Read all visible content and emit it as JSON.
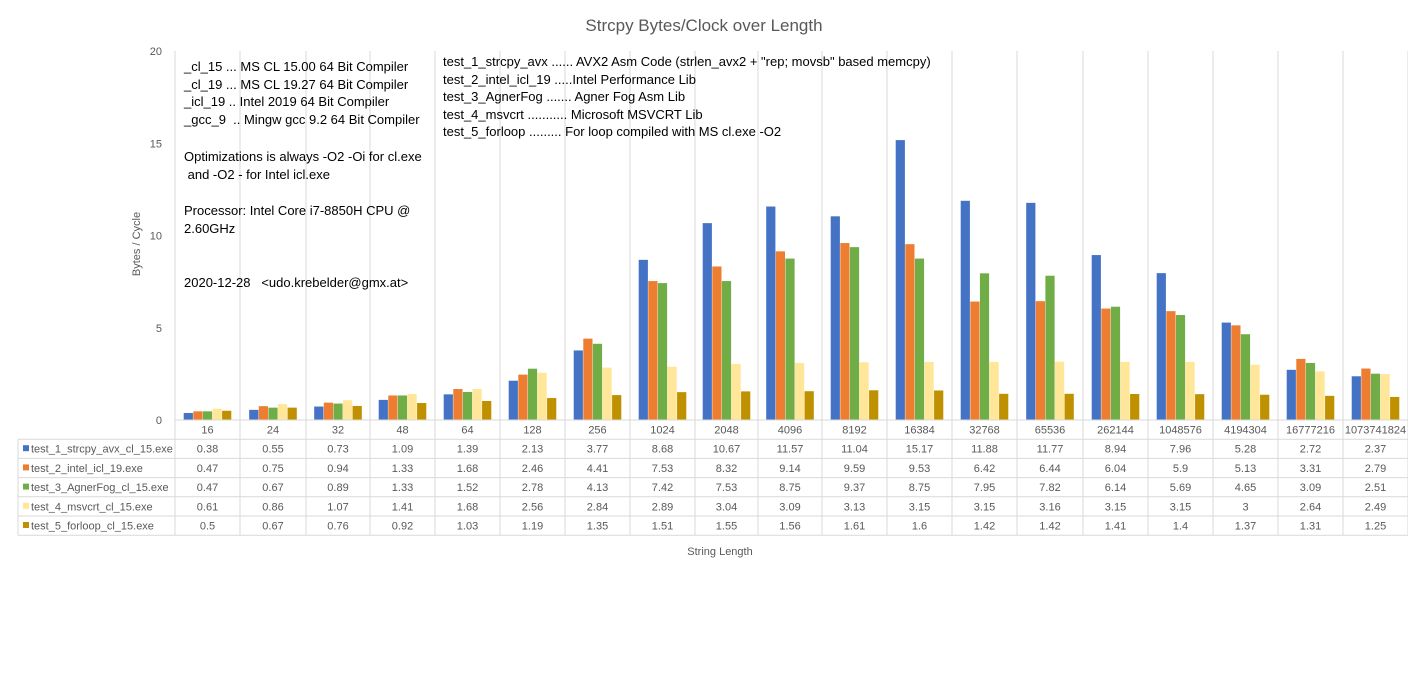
{
  "chart_data": {
    "type": "bar",
    "title": "Strcpy Bytes/Clock over Length",
    "xlabel": "String Length",
    "ylabel": "Bytes / Cycle",
    "ylim": [
      0,
      20
    ],
    "yticks": [
      "0",
      "5",
      "10",
      "15",
      "20"
    ],
    "grid": "vertical",
    "legend": "data-table",
    "categories": [
      "16",
      "24",
      "32",
      "48",
      "64",
      "128",
      "256",
      "1024",
      "2048",
      "4096",
      "8192",
      "16384",
      "32768",
      "65536",
      "262144",
      "1048576",
      "4194304",
      "16777216",
      "1073741824"
    ],
    "series": [
      {
        "name": "test_1_strcpy_avx_cl_15.exe",
        "color": "#4472c4",
        "values": [
          0.38,
          0.55,
          0.73,
          1.09,
          1.39,
          2.13,
          3.77,
          8.68,
          10.67,
          11.57,
          11.04,
          15.17,
          11.88,
          11.77,
          8.94,
          7.96,
          5.28,
          2.72,
          2.37
        ]
      },
      {
        "name": "test_2_intel_icl_19.exe",
        "color": "#ed7d31",
        "values": [
          0.47,
          0.75,
          0.94,
          1.33,
          1.68,
          2.46,
          4.41,
          7.53,
          8.32,
          9.14,
          9.59,
          9.53,
          6.42,
          6.44,
          6.04,
          5.9,
          5.13,
          3.31,
          2.79
        ]
      },
      {
        "name": "test_3_AgnerFog_cl_15.exe",
        "color": "#70ad47",
        "values": [
          0.47,
          0.67,
          0.89,
          1.33,
          1.52,
          2.78,
          4.13,
          7.42,
          7.53,
          8.75,
          9.37,
          8.75,
          7.95,
          7.82,
          6.14,
          5.69,
          4.65,
          3.09,
          2.51
        ]
      },
      {
        "name": "test_4_msvcrt_cl_15.exe",
        "color": "#ffe699",
        "values": [
          0.61,
          0.86,
          1.07,
          1.41,
          1.68,
          2.56,
          2.84,
          2.89,
          3.04,
          3.09,
          3.13,
          3.15,
          3.15,
          3.16,
          3.15,
          3.15,
          3,
          2.64,
          2.49
        ]
      },
      {
        "name": "test_5_forloop_cl_15.exe",
        "color": "#bf9000",
        "values": [
          0.5,
          0.67,
          0.76,
          0.92,
          1.03,
          1.19,
          1.35,
          1.51,
          1.55,
          1.56,
          1.61,
          1.6,
          1.42,
          1.42,
          1.41,
          1.4,
          1.37,
          1.31,
          1.25
        ]
      }
    ]
  },
  "notes": {
    "compilers": [
      "_cl_15 ... MS CL 15.00 64 Bit Compiler",
      "_cl_19 ... MS CL 19.27 64 Bit Compiler",
      "_icl_19 .. Intel 2019 64 Bit Compiler",
      "_gcc_9  .. Mingw gcc 9.2 64 Bit Compiler"
    ],
    "optimizations": [
      "Optimizations is always -O2 -Oi for cl.exe",
      " and -O2 - for Intel icl.exe"
    ],
    "processor": [
      "Processor: Intel Core i7-8850H CPU @",
      "2.60GHz"
    ],
    "date": "2020-12-28   <udo.krebelder@gmx.at>",
    "tests": [
      "test_1_strcpy_avx ...... AVX2 Asm Code (strlen_avx2 + \"rep; movsb\" based memcpy)",
      "test_2_intel_icl_19 .....Intel Performance Lib",
      "test_3_AgnerFog ....... Agner Fog Asm Lib",
      "test_4_msvcrt ........... Microsoft MSVCRT Lib",
      "test_5_forloop ......... For loop compiled with MS cl.exe -O2"
    ]
  }
}
